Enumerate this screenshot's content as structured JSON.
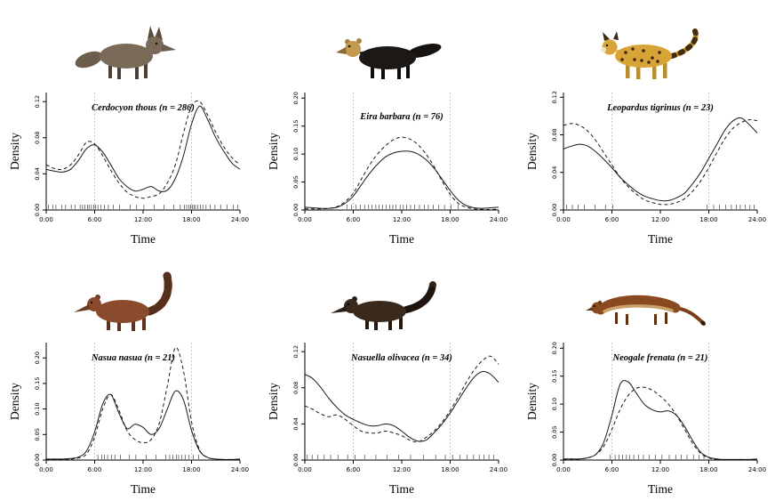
{
  "figure": {
    "x": [
      0,
      1,
      2,
      3,
      4,
      5,
      6,
      7,
      8,
      9,
      10,
      11,
      12,
      13,
      14,
      15,
      16,
      17,
      18,
      19,
      20,
      21,
      22,
      23,
      24
    ],
    "x_tick_hours": [
      0,
      6,
      12,
      18,
      24
    ],
    "x_ticks": [
      "0:00",
      "6:00",
      "12:00",
      "18:00",
      "24:00"
    ],
    "line_color": "#1a1a1a",
    "vline_color": "#b0b0b0"
  },
  "chart_data": [
    {
      "type": "line",
      "title": "Cerdocyon thous (n = 286)",
      "xlabel": "Time",
      "ylabel": "Density",
      "ylim": [
        0,
        0.13
      ],
      "yticks": [
        0,
        0.04,
        0.08,
        0.12
      ],
      "vlines": [
        6,
        18
      ],
      "series": [
        {
          "name": "solid",
          "style": "solid",
          "values": [
            0.045,
            0.043,
            0.042,
            0.045,
            0.055,
            0.068,
            0.072,
            0.064,
            0.05,
            0.035,
            0.026,
            0.021,
            0.023,
            0.026,
            0.021,
            0.022,
            0.035,
            0.06,
            0.095,
            0.115,
            0.1,
            0.08,
            0.065,
            0.052,
            0.045
          ]
        },
        {
          "name": "dashed",
          "style": "dashed",
          "values": [
            0.05,
            0.046,
            0.045,
            0.05,
            0.061,
            0.075,
            0.073,
            0.06,
            0.044,
            0.03,
            0.02,
            0.015,
            0.013,
            0.015,
            0.018,
            0.03,
            0.05,
            0.085,
            0.115,
            0.12,
            0.105,
            0.086,
            0.07,
            0.058,
            0.05
          ]
        }
      ],
      "rug": [
        0.3,
        0.8,
        1.2,
        1.9,
        2.4,
        3.1,
        3.6,
        4.2,
        4.5,
        4.8,
        5.1,
        5.3,
        5.6,
        5.9,
        6.1,
        6.4,
        6.8,
        7.2,
        7.7,
        8.3,
        9.1,
        10.4,
        11.2,
        12.1,
        13.4,
        14.6,
        15.8,
        16.6,
        17.1,
        17.4,
        17.7,
        17.9,
        18.1,
        18.3,
        18.5,
        18.8,
        19.1,
        19.4,
        19.8,
        20.3,
        20.9,
        21.6,
        22.4,
        23.2,
        23.7
      ]
    },
    {
      "type": "line",
      "title": "Eira barbara (n = 76)",
      "xlabel": "Time",
      "ylabel": "Density",
      "ylim": [
        0,
        0.21
      ],
      "yticks": [
        0,
        0.05,
        0.1,
        0.15,
        0.2
      ],
      "vlines": [
        6,
        18
      ],
      "series": [
        {
          "name": "solid",
          "style": "solid",
          "values": [
            0.005,
            0.004,
            0.003,
            0.003,
            0.005,
            0.012,
            0.025,
            0.045,
            0.065,
            0.082,
            0.095,
            0.102,
            0.105,
            0.105,
            0.1,
            0.09,
            0.075,
            0.055,
            0.035,
            0.018,
            0.008,
            0.004,
            0.003,
            0.004,
            0.005
          ]
        },
        {
          "name": "dashed",
          "style": "dashed",
          "values": [
            0.002,
            0.002,
            0.002,
            0.003,
            0.006,
            0.015,
            0.03,
            0.055,
            0.08,
            0.1,
            0.115,
            0.126,
            0.13,
            0.127,
            0.117,
            0.1,
            0.078,
            0.052,
            0.028,
            0.012,
            0.005,
            0.002,
            0.001,
            0.001,
            0.002
          ]
        }
      ],
      "rug": [
        5.2,
        5.8,
        6.3,
        6.9,
        7.4,
        7.9,
        8.3,
        8.8,
        9.2,
        9.6,
        10.1,
        10.5,
        10.9,
        11.3,
        11.8,
        12.2,
        12.6,
        13.1,
        13.6,
        14.2,
        14.8,
        15.3,
        15.9,
        16.6,
        17.3,
        18.1,
        19.0
      ]
    },
    {
      "type": "line",
      "title": "Leopardus tigrinus (n = 23)",
      "xlabel": "Time",
      "ylabel": "Density",
      "ylim": [
        0,
        0.125
      ],
      "yticks": [
        0,
        0.04,
        0.08,
        0.12
      ],
      "vlines": [
        6,
        18
      ],
      "series": [
        {
          "name": "solid",
          "style": "solid",
          "values": [
            0.065,
            0.068,
            0.07,
            0.068,
            0.062,
            0.054,
            0.045,
            0.035,
            0.027,
            0.02,
            0.015,
            0.012,
            0.01,
            0.01,
            0.013,
            0.018,
            0.028,
            0.04,
            0.055,
            0.07,
            0.085,
            0.095,
            0.098,
            0.091,
            0.082
          ]
        },
        {
          "name": "dashed",
          "style": "dashed",
          "values": [
            0.09,
            0.092,
            0.09,
            0.084,
            0.074,
            0.061,
            0.048,
            0.035,
            0.025,
            0.017,
            0.011,
            0.008,
            0.006,
            0.006,
            0.008,
            0.012,
            0.02,
            0.031,
            0.045,
            0.061,
            0.076,
            0.087,
            0.093,
            0.096,
            0.095
          ]
        }
      ],
      "rug": [
        0.4,
        1.1,
        1.8,
        2.6,
        3.9,
        5.2,
        6.1,
        17.8,
        18.6,
        19.3,
        20.1,
        20.8,
        21.4,
        21.9,
        22.5,
        23.1,
        23.6
      ]
    },
    {
      "type": "line",
      "title": "Nasua nasua (n = 21)",
      "xlabel": "Time",
      "ylabel": "Density",
      "ylim": [
        0,
        0.23
      ],
      "yticks": [
        0,
        0.05,
        0.1,
        0.15,
        0.2
      ],
      "vlines": [
        6,
        18
      ],
      "series": [
        {
          "name": "solid",
          "style": "solid",
          "values": [
            0.002,
            0.002,
            0.002,
            0.003,
            0.006,
            0.018,
            0.055,
            0.11,
            0.128,
            0.092,
            0.062,
            0.07,
            0.064,
            0.05,
            0.062,
            0.1,
            0.135,
            0.118,
            0.058,
            0.018,
            0.005,
            0.002,
            0.001,
            0.001,
            0.002
          ]
        },
        {
          "name": "dashed",
          "style": "dashed",
          "values": [
            0.001,
            0.001,
            0.001,
            0.002,
            0.004,
            0.012,
            0.045,
            0.1,
            0.128,
            0.098,
            0.058,
            0.04,
            0.034,
            0.04,
            0.072,
            0.145,
            0.22,
            0.175,
            0.075,
            0.02,
            0.005,
            0.002,
            0.001,
            0.001,
            0.001
          ]
        }
      ],
      "rug": [
        6.4,
        6.9,
        7.2,
        7.6,
        8.1,
        8.5,
        9.2,
        10.3,
        11.1,
        12.4,
        13.6,
        14.8,
        15.3,
        15.7,
        16.1,
        16.4,
        16.8,
        17.2,
        17.7,
        18.2,
        18.9
      ]
    },
    {
      "type": "line",
      "title": "Nasuella olivacea (n = 34)",
      "xlabel": "Time",
      "ylabel": "Density",
      "ylim": [
        0,
        0.13
      ],
      "yticks": [
        0,
        0.04,
        0.08,
        0.12
      ],
      "vlines": [
        6,
        18
      ],
      "series": [
        {
          "name": "solid",
          "style": "solid",
          "values": [
            0.095,
            0.09,
            0.08,
            0.068,
            0.058,
            0.05,
            0.045,
            0.041,
            0.038,
            0.038,
            0.04,
            0.038,
            0.032,
            0.025,
            0.021,
            0.022,
            0.03,
            0.04,
            0.052,
            0.066,
            0.08,
            0.092,
            0.098,
            0.095,
            0.086
          ]
        },
        {
          "name": "dashed",
          "style": "dashed",
          "values": [
            0.06,
            0.056,
            0.051,
            0.048,
            0.05,
            0.045,
            0.038,
            0.032,
            0.03,
            0.03,
            0.032,
            0.03,
            0.027,
            0.022,
            0.02,
            0.025,
            0.032,
            0.042,
            0.055,
            0.07,
            0.086,
            0.1,
            0.11,
            0.115,
            0.106
          ]
        }
      ],
      "rug": [
        0.3,
        0.9,
        1.6,
        2.4,
        3.2,
        4.1,
        5.3,
        6.2,
        7.4,
        8.8,
        10.2,
        11.6,
        13.1,
        14.7,
        16.2,
        17.4,
        18.3,
        19.2,
        20.1,
        20.9,
        21.6,
        22.2,
        22.8,
        23.4
      ]
    },
    {
      "type": "line",
      "title": "Neogale frenata (n = 21)",
      "xlabel": "Time",
      "ylabel": "Density",
      "ylim": [
        0,
        0.21
      ],
      "yticks": [
        0,
        0.05,
        0.1,
        0.15,
        0.2
      ],
      "vlines": [
        6,
        18
      ],
      "series": [
        {
          "name": "solid",
          "style": "solid",
          "values": [
            0.002,
            0.002,
            0.002,
            0.004,
            0.01,
            0.032,
            0.08,
            0.135,
            0.14,
            0.12,
            0.1,
            0.09,
            0.086,
            0.088,
            0.08,
            0.06,
            0.035,
            0.014,
            0.005,
            0.002,
            0.001,
            0.001,
            0.001,
            0.001,
            0.002
          ]
        },
        {
          "name": "dashed",
          "style": "dashed",
          "values": [
            0.001,
            0.001,
            0.002,
            0.004,
            0.01,
            0.025,
            0.055,
            0.09,
            0.115,
            0.128,
            0.13,
            0.125,
            0.114,
            0.1,
            0.08,
            0.055,
            0.03,
            0.012,
            0.004,
            0.001,
            0.001,
            0.001,
            0.001,
            0.001,
            0.001
          ]
        }
      ],
      "rug": [
        5.8,
        6.4,
        6.9,
        7.3,
        7.8,
        8.2,
        8.7,
        9.3,
        9.9,
        10.6,
        11.4,
        12.2,
        13.1,
        13.9,
        14.6,
        15.3,
        16.1,
        16.8,
        17.4
      ]
    }
  ]
}
